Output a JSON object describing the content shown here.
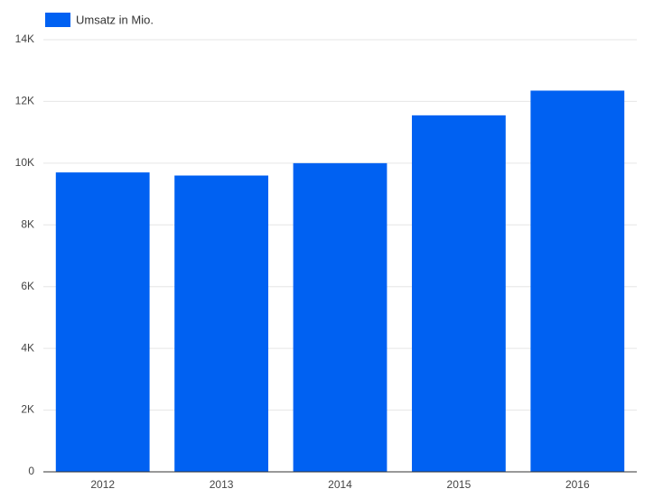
{
  "chart_data": {
    "type": "bar",
    "legend": "top-left",
    "categories": [
      "2012",
      "2013",
      "2014",
      "2015",
      "2016"
    ],
    "series": [
      {
        "name": "Umsatz in Mio.",
        "color": "#0061f2",
        "values": [
          9700,
          9600,
          10000,
          11550,
          12350
        ]
      }
    ],
    "ylim": [
      0,
      14000
    ],
    "yticks": [
      0,
      {
        "value": 2000,
        "label": "2K"
      },
      {
        "value": 4000,
        "label": "4K"
      },
      {
        "value": 6000,
        "label": "6K"
      },
      {
        "value": 8000,
        "label": "8K"
      },
      {
        "value": 10000,
        "label": "10K"
      },
      {
        "value": 12000,
        "label": "12K"
      },
      {
        "value": 14000,
        "label": "14K"
      }
    ],
    "grid": true
  }
}
